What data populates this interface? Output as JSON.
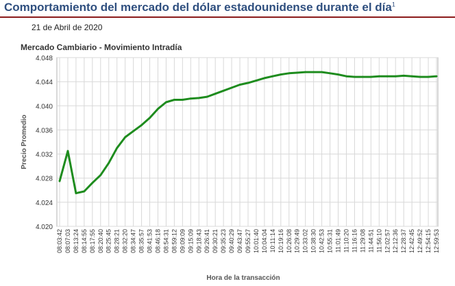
{
  "header": {
    "title": "Comportamiento del mercado del dólar estadounidense durante el día",
    "title_footnote": "1",
    "date": "21 de Abril de 2020"
  },
  "colors": {
    "title": "#2f4f7f",
    "rule": "#8b1a1a",
    "line": "#1e8c1e",
    "grid": "#d8d8d8"
  },
  "chart_data": {
    "type": "line",
    "title": "Mercado Cambiario - Movimiento Intradía",
    "xlabel": "Hora de la transacción",
    "ylabel": "Precio Promedio",
    "ylim": [
      4.02,
      4.048
    ],
    "yticks": [
      "4.020",
      "4.024",
      "4.028",
      "4.032",
      "4.036",
      "4.040",
      "4.044",
      "4.048"
    ],
    "grid": true,
    "x": [
      "08:03:42",
      "08:07:03",
      "08:13:24",
      "08:14:55",
      "08:17:55",
      "08:20:40",
      "08:25:45",
      "08:28:21",
      "08:32:20",
      "08:34:47",
      "08:35:57",
      "08:41:53",
      "08:46:18",
      "08:54:31",
      "08:59:12",
      "09:09:09",
      "09:15:09",
      "09:18:43",
      "09:26:41",
      "09:30:21",
      "09:35:23",
      "09:40:29",
      "09:43:47",
      "09:55:27",
      "10:01:40",
      "10:04:04",
      "10:11:14",
      "10:19:16",
      "10:26:08",
      "10:29:49",
      "10:33:02",
      "10:38:30",
      "10:42:53",
      "10:55:31",
      "11:01:49",
      "11:10:20",
      "11:16:16",
      "11:29:08",
      "11:44:51",
      "11:56:10",
      "12:02:57",
      "12:12:36",
      "12:28:37",
      "12:42:45",
      "12:49:52",
      "12:54:15",
      "12:59:53"
    ],
    "series": [
      {
        "values": [
          4.0275,
          4.0325,
          4.0255,
          4.0258,
          4.0272,
          4.0285,
          4.0305,
          4.033,
          4.0348,
          4.0358,
          4.0368,
          4.038,
          4.0395,
          4.0406,
          4.041,
          4.041,
          4.0412,
          4.0413,
          4.0415,
          4.042,
          4.0425,
          4.043,
          4.0435,
          4.0438,
          4.0442,
          4.0446,
          4.0449,
          4.0452,
          4.0454,
          4.0455,
          4.0456,
          4.0456,
          4.0456,
          4.0454,
          4.0452,
          4.0449,
          4.0448,
          4.0448,
          4.0448,
          4.0449,
          4.0449,
          4.0449,
          4.045,
          4.0449,
          4.0448,
          4.0448,
          4.0449
        ]
      }
    ]
  }
}
